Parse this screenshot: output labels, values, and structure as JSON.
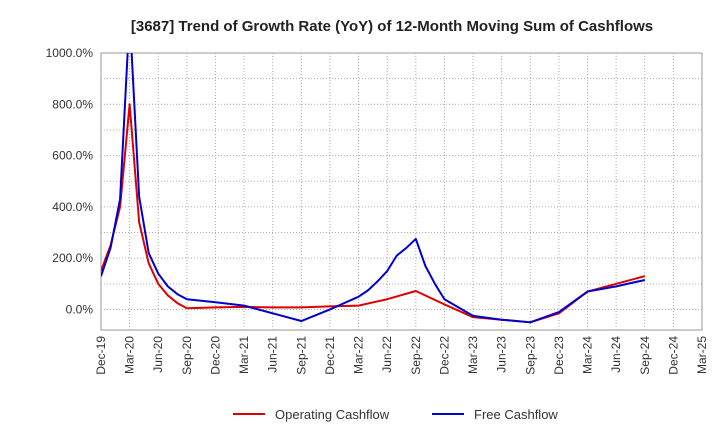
{
  "chart_data": {
    "type": "line",
    "title": "[3687]  Trend of Growth Rate (YoY) of 12-Month Moving Sum of Cashflows",
    "xlabel": "",
    "ylabel": "",
    "ylim": [
      -80,
      1000
    ],
    "yticks": [
      0,
      200,
      400,
      600,
      800,
      1000
    ],
    "ytick_labels": [
      "0.0%",
      "200.0%",
      "400.0%",
      "600.0%",
      "800.0%",
      "1000.0%"
    ],
    "x_range": [
      "2019-12",
      "2025-03"
    ],
    "xtick_labels": [
      "Dec-19",
      "Mar-20",
      "Jun-20",
      "Sep-20",
      "Dec-20",
      "Mar-21",
      "Jun-21",
      "Sep-21",
      "Dec-21",
      "Mar-22",
      "Jun-22",
      "Sep-22",
      "Dec-22",
      "Mar-23",
      "Jun-23",
      "Sep-23",
      "Dec-23",
      "Mar-24",
      "Jun-24",
      "Sep-24",
      "Dec-24",
      "Mar-25"
    ],
    "grid": true,
    "legend": "bottom",
    "series": [
      {
        "name": "Operating Cashflow",
        "color": "#dd0000",
        "points": [
          [
            "2019-12",
            150
          ],
          [
            "2020-01",
            250
          ],
          [
            "2020-02",
            400
          ],
          [
            "2020-03",
            800
          ],
          [
            "2020-04",
            340
          ],
          [
            "2020-05",
            180
          ],
          [
            "2020-06",
            100
          ],
          [
            "2020-07",
            55
          ],
          [
            "2020-08",
            25
          ],
          [
            "2020-09",
            5
          ],
          [
            "2020-12",
            8
          ],
          [
            "2021-03",
            10
          ],
          [
            "2021-06",
            8
          ],
          [
            "2021-09",
            8
          ],
          [
            "2021-12",
            12
          ],
          [
            "2022-03",
            15
          ],
          [
            "2022-06",
            40
          ],
          [
            "2022-09",
            72
          ],
          [
            "2022-12",
            20
          ],
          [
            "2023-03",
            -30
          ],
          [
            "2023-06",
            -40
          ],
          [
            "2023-09",
            -50
          ],
          [
            "2023-12",
            -15
          ],
          [
            "2024-03",
            70
          ],
          [
            "2024-06",
            100
          ],
          [
            "2024-09",
            130
          ]
        ]
      },
      {
        "name": "Free Cashflow",
        "color": "#0000cc",
        "points": [
          [
            "2019-12",
            130
          ],
          [
            "2020-01",
            240
          ],
          [
            "2020-02",
            430
          ],
          [
            "2020-03",
            1150
          ],
          [
            "2020-04",
            440
          ],
          [
            "2020-05",
            220
          ],
          [
            "2020-06",
            140
          ],
          [
            "2020-07",
            90
          ],
          [
            "2020-08",
            60
          ],
          [
            "2020-09",
            40
          ],
          [
            "2020-12",
            28
          ],
          [
            "2021-03",
            15
          ],
          [
            "2021-06",
            -15
          ],
          [
            "2021-09",
            -45
          ],
          [
            "2021-12",
            0
          ],
          [
            "2022-03",
            50
          ],
          [
            "2022-04",
            75
          ],
          [
            "2022-05",
            110
          ],
          [
            "2022-06",
            150
          ],
          [
            "2022-07",
            210
          ],
          [
            "2022-08",
            240
          ],
          [
            "2022-09",
            275
          ],
          [
            "2022-10",
            170
          ],
          [
            "2022-11",
            100
          ],
          [
            "2022-12",
            40
          ],
          [
            "2023-03",
            -25
          ],
          [
            "2023-06",
            -40
          ],
          [
            "2023-09",
            -50
          ],
          [
            "2023-12",
            -10
          ],
          [
            "2024-03",
            70
          ],
          [
            "2024-06",
            90
          ],
          [
            "2024-09",
            115
          ]
        ]
      }
    ]
  }
}
